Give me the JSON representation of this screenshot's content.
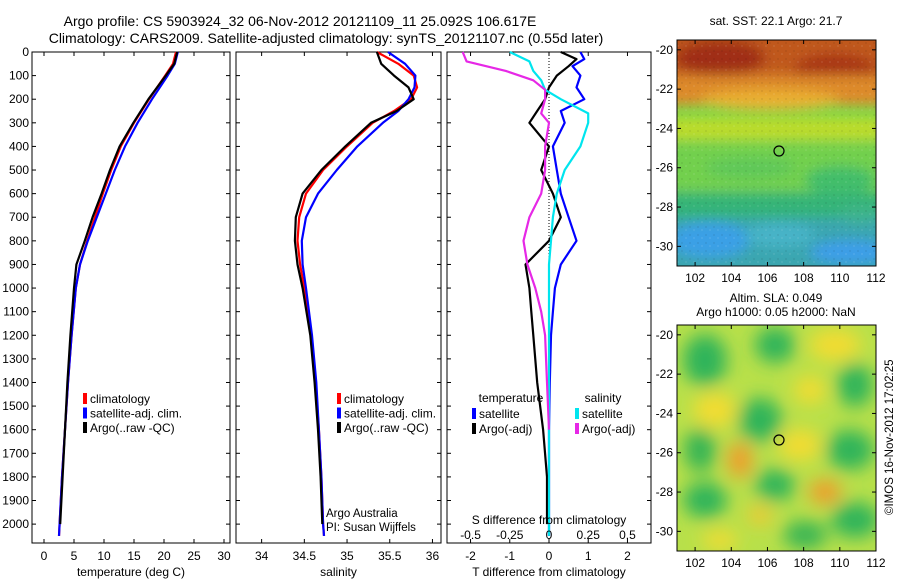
{
  "titles": {
    "line1": "Argo profile: CS 5903924_32 06-Nov-2012 20121109_11 25.092S 106.617E",
    "line2": "Climatology: CARS2009. Satellite-adjusted climatology: synTS_20121107.nc (0.55d later)"
  },
  "colors": {
    "climatology": "#ff0000",
    "satellite": "#0000ff",
    "argo": "#000000",
    "salinity_satellite": "#00e5ee",
    "salinity_argo": "#e628e6"
  },
  "chart_data": [
    {
      "type": "line",
      "name": "temperature-profile",
      "xlabel": "temperature (deg C)",
      "ylabel": "",
      "xlim": [
        -2,
        31
      ],
      "ylim": [
        2080,
        0
      ],
      "y_inverted": true,
      "xticks": [
        0,
        5,
        10,
        15,
        20,
        25,
        30
      ],
      "yticks": [
        0,
        100,
        200,
        300,
        400,
        500,
        600,
        700,
        800,
        900,
        1000,
        1100,
        1200,
        1300,
        1400,
        1500,
        1600,
        1700,
        1800,
        1900,
        2000
      ],
      "legend": [
        "climatology",
        "satellite-adj. clim.",
        "Argo(..raw -QC)"
      ],
      "series": [
        {
          "name": "climatology",
          "color": "#ff0000",
          "depth": [
            0,
            50,
            100,
            200,
            300,
            400,
            500,
            600,
            700,
            800,
            900,
            1000,
            1200,
            1400,
            1600,
            1800,
            2000,
            2050
          ],
          "values": [
            22.0,
            21.5,
            20.2,
            17.5,
            15.0,
            12.8,
            11.2,
            9.8,
            8.5,
            7.2,
            6.0,
            5.3,
            4.6,
            4.0,
            3.5,
            3.0,
            2.6,
            2.5
          ]
        },
        {
          "name": "satellite-adj. clim.",
          "color": "#0000ff",
          "depth": [
            0,
            50,
            100,
            200,
            300,
            400,
            500,
            600,
            700,
            800,
            900,
            1000,
            1200,
            1400,
            1600,
            1800,
            2000,
            2050
          ],
          "values": [
            22.3,
            21.8,
            20.6,
            18.0,
            15.6,
            13.5,
            11.8,
            10.3,
            8.8,
            7.3,
            6.0,
            5.3,
            4.6,
            4.0,
            3.5,
            3.0,
            2.6,
            2.5
          ]
        },
        {
          "name": "Argo(..raw -QC)",
          "color": "#000000",
          "depth": [
            0,
            50,
            100,
            200,
            300,
            400,
            500,
            600,
            700,
            800,
            900,
            1000,
            1200,
            1400,
            1600,
            1800,
            2000
          ],
          "values": [
            22.2,
            21.7,
            20.3,
            17.4,
            14.9,
            12.6,
            11.0,
            9.6,
            8.1,
            6.8,
            5.4,
            5.0,
            4.4,
            3.9,
            3.5,
            3.1,
            2.7
          ]
        }
      ]
    },
    {
      "type": "line",
      "name": "salinity-profile",
      "xlabel": "salinity",
      "xlim": [
        33.7,
        36.1
      ],
      "ylim": [
        2080,
        0
      ],
      "y_inverted": true,
      "xticks": [
        34,
        34.5,
        35,
        35.5,
        36
      ],
      "legend": [
        "climatology",
        "satellite-adj. clim.",
        "Argo(..raw -QC)"
      ],
      "annotation": [
        "Argo Australia",
        "PI: Susan Wijffels"
      ],
      "series": [
        {
          "name": "climatology",
          "color": "#ff0000",
          "depth": [
            0,
            50,
            100,
            150,
            200,
            250,
            300,
            400,
            500,
            600,
            700,
            800,
            900,
            1000,
            1200,
            1400,
            1600,
            1800,
            2000,
            2050
          ],
          "values": [
            35.35,
            35.6,
            35.78,
            35.82,
            35.75,
            35.55,
            35.3,
            35.0,
            34.72,
            34.52,
            34.44,
            34.42,
            34.45,
            34.5,
            34.58,
            34.63,
            34.67,
            34.7,
            34.72,
            34.73
          ]
        },
        {
          "name": "satellite-adj. clim.",
          "color": "#0000ff",
          "depth": [
            0,
            50,
            100,
            150,
            200,
            250,
            300,
            400,
            500,
            600,
            700,
            800,
            900,
            1000,
            1200,
            1400,
            1600,
            1800,
            2000,
            2050
          ],
          "values": [
            35.48,
            35.68,
            35.8,
            35.79,
            35.72,
            35.6,
            35.42,
            35.12,
            34.88,
            34.66,
            34.52,
            34.47,
            34.48,
            34.52,
            34.59,
            34.64,
            34.67,
            34.7,
            34.72,
            34.73
          ]
        },
        {
          "name": "Argo(..raw -QC)",
          "color": "#000000",
          "depth": [
            0,
            50,
            100,
            150,
            200,
            250,
            300,
            400,
            500,
            600,
            700,
            800,
            900,
            1000,
            1200,
            1400,
            1600,
            1800,
            2000
          ],
          "values": [
            35.35,
            35.4,
            35.55,
            35.72,
            35.78,
            35.58,
            35.28,
            34.98,
            34.7,
            34.48,
            34.4,
            34.39,
            34.42,
            34.48,
            34.57,
            34.62,
            34.66,
            34.69,
            34.71
          ]
        }
      ]
    },
    {
      "type": "line",
      "name": "difference-profile",
      "xlabel": "T difference from climatology",
      "xlabel_top": "S difference from climatology",
      "xlim": [
        -2.6,
        2.6
      ],
      "ylim": [
        2080,
        0
      ],
      "y_inverted": true,
      "xticks": [
        -2,
        -1,
        0,
        1,
        2
      ],
      "s_xticks_labels": [
        "-0.5",
        "-0.25",
        "0",
        "0.25",
        "0.5"
      ],
      "s_xticks_pos": [
        -2,
        -1,
        0,
        1,
        2
      ],
      "legend_temperature_title": "temperature",
      "legend_salinity_title": "salinity",
      "legend_temperature": [
        "satellite",
        "Argo(-adj)"
      ],
      "legend_salinity": [
        "satellite",
        "Argo(-adj)"
      ],
      "series": [
        {
          "name": "T satellite",
          "color": "#0000ff",
          "depth": [
            0,
            30,
            60,
            100,
            150,
            200,
            250,
            300,
            400,
            500,
            600,
            700,
            800,
            900,
            1000,
            1100,
            1200,
            1400,
            1600,
            1800,
            2000,
            2050
          ],
          "values": [
            0.8,
            0.9,
            0.6,
            0.8,
            0.7,
            0.9,
            0.3,
            0.4,
            0.1,
            0.2,
            0.3,
            0.5,
            0.7,
            0.3,
            0.15,
            0.1,
            0.05,
            0.02,
            0.0,
            0.0,
            0.0,
            0.0
          ]
        },
        {
          "name": "T Argo(-adj)",
          "color": "#000000",
          "depth": [
            0,
            30,
            60,
            100,
            150,
            200,
            250,
            300,
            400,
            500,
            600,
            700,
            800,
            900,
            1000,
            1100,
            1200,
            1400,
            1600,
            1800,
            2000
          ],
          "values": [
            0.3,
            0.7,
            0.5,
            0.2,
            0.0,
            -0.1,
            -0.3,
            -0.5,
            0.0,
            -0.2,
            0.1,
            0.3,
            0.0,
            -0.6,
            -0.5,
            -0.45,
            -0.4,
            -0.3,
            -0.15,
            -0.05,
            -0.05
          ]
        },
        {
          "name": "S satellite",
          "color": "#00e5ee",
          "depth": [
            0,
            40,
            80,
            120,
            160,
            200,
            260,
            300,
            400,
            500,
            600,
            700,
            800,
            900,
            1000,
            1200,
            1400,
            1600,
            1800,
            2000,
            2050
          ],
          "values": [
            -1.0,
            -0.5,
            -0.4,
            -0.2,
            -0.1,
            0.3,
            1.0,
            1.0,
            0.8,
            0.4,
            0.2,
            0.1,
            0.05,
            0.0,
            0.0,
            0.0,
            0.0,
            0.0,
            0.0,
            0.0,
            0.0
          ]
        },
        {
          "name": "S Argo(-adj)",
          "color": "#e628e6",
          "depth": [
            0,
            40,
            80,
            120,
            160,
            200,
            260,
            300,
            400,
            500,
            600,
            700,
            800,
            900,
            1000,
            1100,
            1200,
            1400,
            1600
          ],
          "values": [
            -2.2,
            -2.1,
            -1.1,
            -0.4,
            -0.1,
            -0.1,
            -0.2,
            0.0,
            -0.1,
            -0.1,
            -0.2,
            -0.5,
            -0.65,
            -0.55,
            -0.35,
            -0.2,
            -0.1,
            -0.05,
            0.0
          ]
        }
      ]
    },
    {
      "type": "heatmap",
      "name": "sst-map",
      "title": "sat. SST: 22.1 Argo: 21.7",
      "xlim": [
        101,
        112
      ],
      "ylim": [
        -31,
        -19.5
      ],
      "xticks": [
        102,
        104,
        106,
        108,
        110,
        112
      ],
      "yticks": [
        -20,
        -22,
        -24,
        -26,
        -28,
        -30
      ],
      "float_position": {
        "lon": 106.617,
        "lat": -25.092
      }
    },
    {
      "type": "heatmap",
      "name": "sla-map",
      "title": "Altim. SLA: 0.049",
      "subtitle": "Argo h1000: 0.05 h2000: NaN",
      "xlim": [
        101,
        112
      ],
      "ylim": [
        -31,
        -19.5
      ],
      "xticks": [
        102,
        104,
        106,
        108,
        110,
        112
      ],
      "yticks": [
        -20,
        -22,
        -24,
        -26,
        -28,
        -30
      ],
      "float_position": {
        "lon": 106.617,
        "lat": -25.092
      }
    }
  ],
  "footer_stamp": "©IMOS 16-Nov-2012 17:02:25"
}
